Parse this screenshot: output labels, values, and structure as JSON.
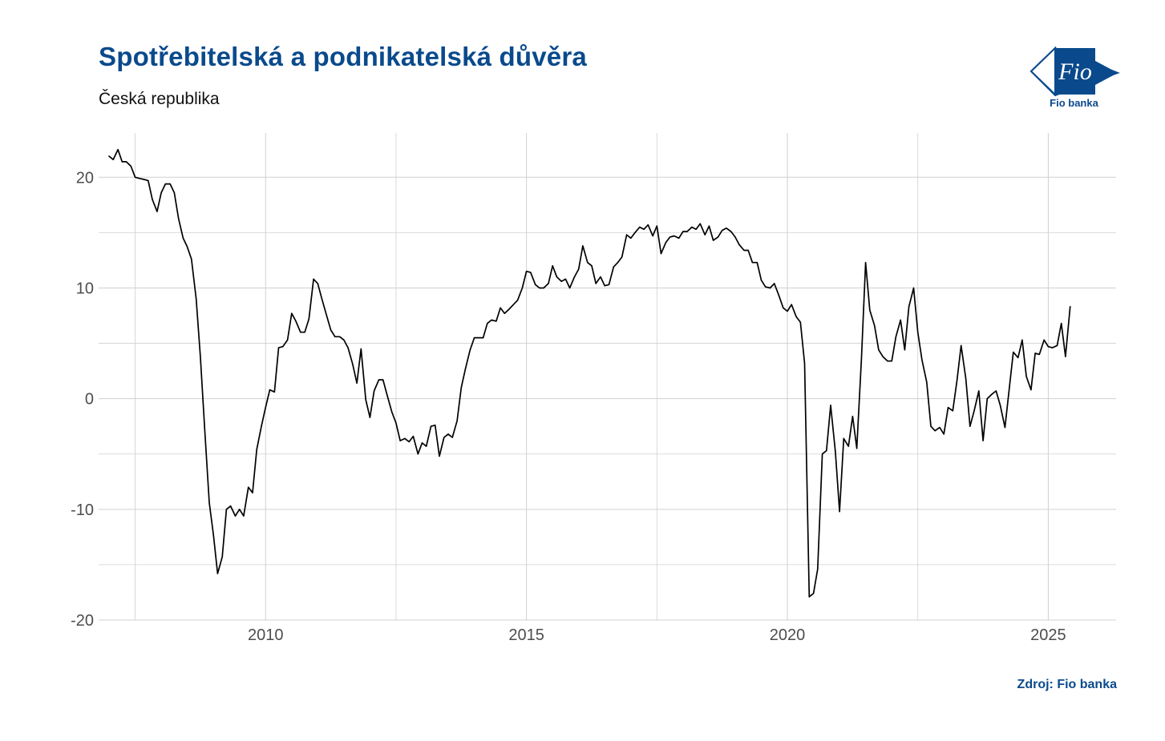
{
  "title": "Spotřebitelská a podnikatelská důvěra",
  "subtitle": "Česká republika",
  "source": "Zdroj: Fio banka",
  "logo": {
    "mark_text": "Fio",
    "caption": "Fio banka",
    "icon": "fio-banka-logo"
  },
  "colors": {
    "title": "#0a4a8c",
    "line": "#000000",
    "grid": "#d0d0d0",
    "axis_text": "#4d4d4d"
  },
  "chart_data": {
    "type": "line",
    "title": "Spotřebitelská a podnikatelská důvěra",
    "subtitle": "Česká republika",
    "xlabel": "",
    "ylabel": "",
    "xlim": [
      2006.8,
      2026.3
    ],
    "ylim": [
      -20,
      24
    ],
    "x_ticks": [
      2010,
      2015,
      2020,
      2025
    ],
    "x_tick_labels": [
      "2010",
      "2015",
      "2020",
      "2025"
    ],
    "x_minor_ticks": [
      2007.5,
      2012.5,
      2017.5,
      2022.5
    ],
    "y_ticks": [
      -20,
      -10,
      0,
      10,
      20
    ],
    "y_tick_labels": [
      "-20",
      "-10",
      "0",
      "10",
      "20"
    ],
    "y_minor_ticks": [
      -15,
      -5,
      5,
      15
    ],
    "grid": true,
    "legend": "none",
    "series": [
      {
        "x": [
          2007.0,
          2007.08,
          2007.17,
          2007.25,
          2007.33,
          2007.42,
          2007.5,
          2007.58,
          2007.67,
          2007.75,
          2007.83,
          2007.92,
          2008.0,
          2008.08,
          2008.17,
          2008.25,
          2008.33,
          2008.42,
          2008.5,
          2008.58,
          2008.67,
          2008.75,
          2008.83,
          2008.92,
          2009.0,
          2009.08,
          2009.17,
          2009.25,
          2009.33,
          2009.42,
          2009.5,
          2009.58,
          2009.67,
          2009.75,
          2009.83,
          2009.92,
          2010.0,
          2010.08,
          2010.17,
          2010.25,
          2010.33,
          2010.42,
          2010.5,
          2010.58,
          2010.67,
          2010.75,
          2010.83,
          2010.92,
          2011.0,
          2011.08,
          2011.17,
          2011.25,
          2011.33,
          2011.42,
          2011.5,
          2011.58,
          2011.67,
          2011.75,
          2011.83,
          2011.92,
          2012.0,
          2012.08,
          2012.17,
          2012.25,
          2012.33,
          2012.42,
          2012.5,
          2012.58,
          2012.67,
          2012.75,
          2012.83,
          2012.92,
          2013.0,
          2013.08,
          2013.17,
          2013.25,
          2013.33,
          2013.42,
          2013.5,
          2013.58,
          2013.67,
          2013.75,
          2013.83,
          2013.92,
          2014.0,
          2014.08,
          2014.17,
          2014.25,
          2014.33,
          2014.42,
          2014.5,
          2014.58,
          2014.67,
          2014.75,
          2014.83,
          2014.92,
          2015.0,
          2015.08,
          2015.17,
          2015.25,
          2015.33,
          2015.42,
          2015.5,
          2015.58,
          2015.67,
          2015.75,
          2015.83,
          2015.92,
          2016.0,
          2016.08,
          2016.17,
          2016.25,
          2016.33,
          2016.42,
          2016.5,
          2016.58,
          2016.67,
          2016.75,
          2016.83,
          2016.92,
          2017.0,
          2017.08,
          2017.17,
          2017.25,
          2017.33,
          2017.42,
          2017.5,
          2017.58,
          2017.67,
          2017.75,
          2017.83,
          2017.92,
          2018.0,
          2018.08,
          2018.17,
          2018.25,
          2018.33,
          2018.42,
          2018.5,
          2018.58,
          2018.67,
          2018.75,
          2018.83,
          2018.92,
          2019.0,
          2019.08,
          2019.17,
          2019.25,
          2019.33,
          2019.42,
          2019.5,
          2019.58,
          2019.67,
          2019.75,
          2019.83,
          2019.92,
          2020.0,
          2020.08,
          2020.17,
          2020.25,
          2020.33,
          2020.42,
          2020.5,
          2020.58,
          2020.67,
          2020.75,
          2020.83,
          2020.92,
          2021.0,
          2021.08,
          2021.17,
          2021.25,
          2021.33,
          2021.42,
          2021.5,
          2021.58,
          2021.67,
          2021.75,
          2021.83,
          2021.92,
          2022.0,
          2022.08,
          2022.17,
          2022.25,
          2022.33,
          2022.42,
          2022.5,
          2022.58,
          2022.67,
          2022.75,
          2022.83,
          2022.92,
          2023.0,
          2023.08,
          2023.17,
          2023.25,
          2023.33,
          2023.42,
          2023.5,
          2023.58,
          2023.67,
          2023.75,
          2023.83,
          2023.92,
          2024.0,
          2024.08,
          2024.17,
          2024.25,
          2024.33,
          2024.42,
          2024.5,
          2024.58,
          2024.67,
          2024.75,
          2024.83,
          2024.92,
          2025.0,
          2025.08,
          2025.17,
          2025.25,
          2025.33,
          2025.42
        ],
        "values": [
          21.9,
          21.6,
          22.5,
          21.4,
          21.4,
          21.0,
          20.0,
          19.9,
          19.8,
          19.7,
          18.0,
          16.9,
          18.6,
          19.4,
          19.4,
          18.6,
          16.3,
          14.5,
          13.7,
          12.6,
          9.0,
          3.8,
          -2.5,
          -9.4,
          -12.3,
          -15.8,
          -14.3,
          -10.0,
          -9.7,
          -10.6,
          -10.0,
          -10.6,
          -8.0,
          -8.5,
          -4.6,
          -2.5,
          -0.8,
          0.8,
          0.6,
          4.6,
          4.7,
          5.3,
          7.7,
          7.0,
          6.0,
          6.0,
          7.2,
          10.8,
          10.4,
          9.0,
          7.5,
          6.2,
          5.6,
          5.6,
          5.3,
          4.6,
          3.1,
          1.4,
          4.5,
          -0.1,
          -1.7,
          0.7,
          1.7,
          1.7,
          0.3,
          -1.2,
          -2.2,
          -3.8,
          -3.6,
          -3.9,
          -3.4,
          -5.0,
          -4.0,
          -4.3,
          -2.5,
          -2.4,
          -5.2,
          -3.5,
          -3.2,
          -3.5,
          -2.0,
          1.0,
          2.7,
          4.4,
          5.5,
          5.5,
          5.5,
          6.8,
          7.1,
          7.0,
          8.2,
          7.7,
          8.1,
          8.5,
          8.9,
          10.0,
          11.5,
          11.4,
          10.3,
          10.0,
          10.0,
          10.4,
          12.0,
          11.0,
          10.6,
          10.8,
          10.0,
          11.0,
          11.7,
          13.8,
          12.3,
          12.0,
          10.4,
          11.0,
          10.2,
          10.3,
          11.9,
          12.3,
          12.8,
          14.8,
          14.5,
          15.0,
          15.5,
          15.3,
          15.7,
          14.7,
          15.6,
          13.1,
          14.1,
          14.6,
          14.7,
          14.5,
          15.1,
          15.1,
          15.5,
          15.3,
          15.8,
          14.8,
          15.6,
          14.3,
          14.6,
          15.2,
          15.4,
          15.1,
          14.6,
          13.9,
          13.4,
          13.4,
          12.3,
          12.3,
          10.7,
          10.1,
          10.0,
          10.4,
          9.4,
          8.2,
          7.9,
          8.5,
          7.4,
          6.9,
          3.2,
          -17.9,
          -17.6,
          -15.4,
          -5.0,
          -4.7,
          -0.6,
          -4.8,
          -10.2,
          -3.6,
          -4.3,
          -1.6,
          -4.5,
          3.6,
          12.3,
          8.0,
          6.6,
          4.4,
          3.8,
          3.4,
          3.4,
          5.6,
          7.1,
          4.4,
          8.3,
          10.0,
          6.0,
          3.5,
          1.5,
          -2.5,
          -2.9,
          -2.6,
          -3.2,
          -0.8,
          -1.1,
          1.6,
          4.8,
          1.8,
          -2.5,
          -1.1,
          0.7,
          -3.8,
          0.0,
          0.4,
          0.7,
          -0.6,
          -2.6,
          0.8,
          4.2,
          3.7,
          5.3,
          2.0,
          0.8,
          4.1,
          4.0,
          5.3,
          4.7,
          4.6,
          4.8,
          6.8,
          3.8,
          8.3
        ]
      }
    ]
  }
}
